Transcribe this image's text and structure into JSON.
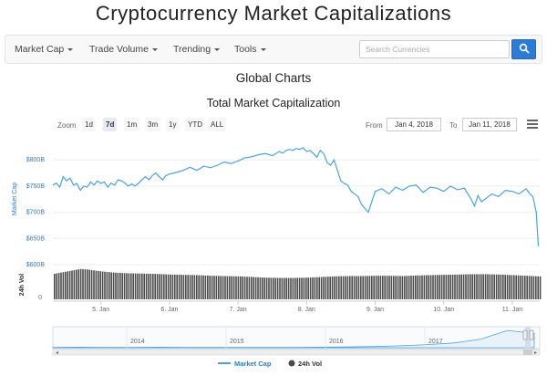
{
  "site": {
    "title": "Cryptocurrency Market Capitalizations"
  },
  "nav": {
    "items": [
      {
        "label": "Market Cap"
      },
      {
        "label": "Trade Volume"
      },
      {
        "label": "Trending"
      },
      {
        "label": "Tools"
      }
    ],
    "search": {
      "placeholder": "Search Currencies",
      "icon": "search-icon"
    }
  },
  "page": {
    "heading": "Global Charts"
  },
  "controls": {
    "zoom_label": "Zoom",
    "zoom_options": [
      "1d",
      "7d",
      "1m",
      "3m",
      "1y",
      "YTD",
      "ALL"
    ],
    "active_zoom": "7d",
    "from_label": "From",
    "from_date": "Jan 4, 2018",
    "to_label": "To",
    "to_date": "Jan 11, 2018",
    "menu_icon": "hamburger-menu-icon"
  },
  "colors": {
    "line": "#4aa3df",
    "volume": "#4a4a4a",
    "accent": "#2b7bd8"
  },
  "chart_data": {
    "type": "line",
    "title": "Total Market Capitalization",
    "ylabel": "Market Cap",
    "y2label": "24h Vol",
    "yticks": [
      "$600B",
      "$650B",
      "$700B",
      "$750B",
      "$800B"
    ],
    "ylim": [
      600,
      830
    ],
    "vol_ticks": [
      "0"
    ],
    "xticks": [
      "5. Jan",
      "6. Jan",
      "7. Jan",
      "8. Jan",
      "9. Jan",
      "10. Jan",
      "11. Jan"
    ],
    "xlim": [
      4.3,
      11.4
    ],
    "series": [
      {
        "name": "Market Cap",
        "x": [
          4.3,
          4.35,
          4.4,
          4.45,
          4.5,
          4.55,
          4.6,
          4.65,
          4.7,
          4.75,
          4.8,
          4.85,
          4.9,
          4.95,
          5.0,
          5.05,
          5.1,
          5.15,
          5.2,
          5.25,
          5.3,
          5.35,
          5.4,
          5.45,
          5.5,
          5.55,
          5.6,
          5.65,
          5.7,
          5.75,
          5.8,
          5.85,
          5.9,
          5.95,
          6.0,
          6.1,
          6.2,
          6.3,
          6.4,
          6.5,
          6.6,
          6.7,
          6.8,
          6.9,
          7.0,
          7.1,
          7.2,
          7.3,
          7.4,
          7.5,
          7.6,
          7.65,
          7.7,
          7.75,
          7.8,
          7.85,
          7.9,
          7.95,
          8.0,
          8.05,
          8.1,
          8.15,
          8.2,
          8.25,
          8.3,
          8.35,
          8.4,
          8.45,
          8.5,
          8.55,
          8.6,
          8.65,
          8.7,
          8.75,
          8.8,
          8.9,
          9.0,
          9.1,
          9.2,
          9.3,
          9.4,
          9.5,
          9.6,
          9.7,
          9.8,
          9.9,
          10.0,
          10.1,
          10.2,
          10.3,
          10.4,
          10.45,
          10.5,
          10.55,
          10.6,
          10.7,
          10.8,
          10.9,
          11.0,
          11.1,
          11.2,
          11.25,
          11.3,
          11.35,
          11.38
        ],
        "values": [
          752,
          756,
          748,
          768,
          760,
          765,
          752,
          755,
          742,
          750,
          748,
          758,
          752,
          760,
          755,
          758,
          748,
          756,
          752,
          762,
          760,
          756,
          750,
          754,
          750,
          756,
          762,
          768,
          762,
          770,
          775,
          768,
          762,
          770,
          773,
          776,
          780,
          786,
          780,
          788,
          785,
          790,
          796,
          793,
          798,
          804,
          806,
          810,
          812,
          808,
          816,
          813,
          818,
          820,
          818,
          822,
          820,
          823,
          816,
          818,
          812,
          805,
          818,
          812,
          795,
          790,
          800,
          780,
          760,
          755,
          752,
          740,
          735,
          730,
          715,
          700,
          740,
          745,
          735,
          748,
          742,
          750,
          752,
          738,
          748,
          746,
          740,
          750,
          743,
          746,
          725,
          712,
          732,
          720,
          725,
          735,
          730,
          742,
          740,
          735,
          745,
          736,
          730,
          700,
          635
        ]
      }
    ],
    "volume": {
      "name": "24h Vol",
      "x": [
        4.3,
        4.4,
        4.5,
        4.6,
        4.7,
        4.8,
        4.9,
        5.0,
        5.2,
        5.4,
        5.6,
        5.8,
        6.0,
        6.2,
        6.4,
        6.6,
        6.8,
        7.0,
        7.2,
        7.4,
        7.6,
        7.8,
        8.0,
        8.2,
        8.4,
        8.6,
        8.8,
        9.0,
        9.2,
        9.4,
        9.6,
        9.8,
        10.0,
        10.2,
        10.4,
        10.6,
        10.8,
        11.0,
        11.2,
        11.38
      ],
      "values": [
        0.82,
        0.86,
        0.9,
        0.94,
        0.98,
        0.96,
        0.93,
        0.9,
        0.86,
        0.84,
        0.83,
        0.82,
        0.8,
        0.79,
        0.78,
        0.76,
        0.75,
        0.74,
        0.72,
        0.7,
        0.69,
        0.69,
        0.7,
        0.72,
        0.74,
        0.75,
        0.75,
        0.76,
        0.76,
        0.75,
        0.77,
        0.78,
        0.79,
        0.8,
        0.81,
        0.81,
        0.8,
        0.78,
        0.76,
        0.74
      ]
    },
    "navigator": {
      "labels": [
        "2014",
        "2015",
        "2016",
        "2017"
      ],
      "values": [
        0.02,
        0.03,
        0.02,
        0.02,
        0.03,
        0.02,
        0.02,
        0.02,
        0.02,
        0.02,
        0.03,
        0.04,
        0.06,
        0.1,
        0.16,
        0.25,
        0.45,
        0.9,
        0.75
      ]
    },
    "legend": [
      "Market Cap",
      "24h Vol"
    ],
    "legend_position": "bottom"
  }
}
